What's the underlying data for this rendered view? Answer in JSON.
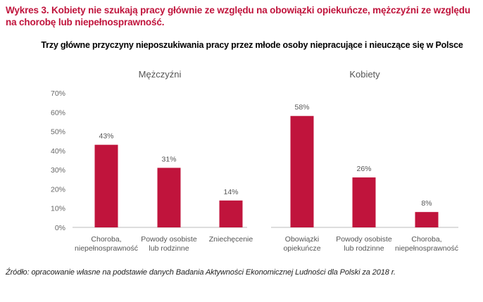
{
  "heading": "Wykres 3. Kobiety nie szukają pracy głównie ze względu na obowiązki opiekuńcze, mężczyźni ze względu na chorobę lub niepełnosprawność.",
  "subtitle": "Trzy główne przyczyny nieposzukiwania pracy przez młode osoby niepracujące i nieuczące się w Polsce",
  "source": "Źródło: opracowanie własne na podstawie danych Badania Aktywności Ekonomicznej Ludności dla Polski za 2018 r.",
  "colors": {
    "bar": "#c0143c",
    "heading": "#c0143c"
  },
  "chart_data": {
    "type": "bar",
    "ylim": [
      0,
      70
    ],
    "yticks": [
      "0%",
      "10%",
      "20%",
      "30%",
      "40%",
      "50%",
      "60%",
      "70%"
    ],
    "grid": false,
    "panels": [
      {
        "name": "Mężczyźni",
        "categories": [
          [
            "Choroba,",
            "niepełnosprawność"
          ],
          [
            "Powody osobiste",
            "lub rodzinne"
          ],
          [
            "Zniechęcenie"
          ]
        ],
        "values": [
          43,
          31,
          14
        ],
        "labels": [
          "43%",
          "31%",
          "14%"
        ]
      },
      {
        "name": "Kobiety",
        "categories": [
          [
            "Obowiązki",
            "opiekuńcze"
          ],
          [
            "Powody osobiste",
            "lub rodzinne"
          ],
          [
            "Choroba,",
            "niepełnosprawność"
          ]
        ],
        "values": [
          58,
          26,
          8
        ],
        "labels": [
          "58%",
          "26%",
          "8%"
        ]
      }
    ]
  }
}
